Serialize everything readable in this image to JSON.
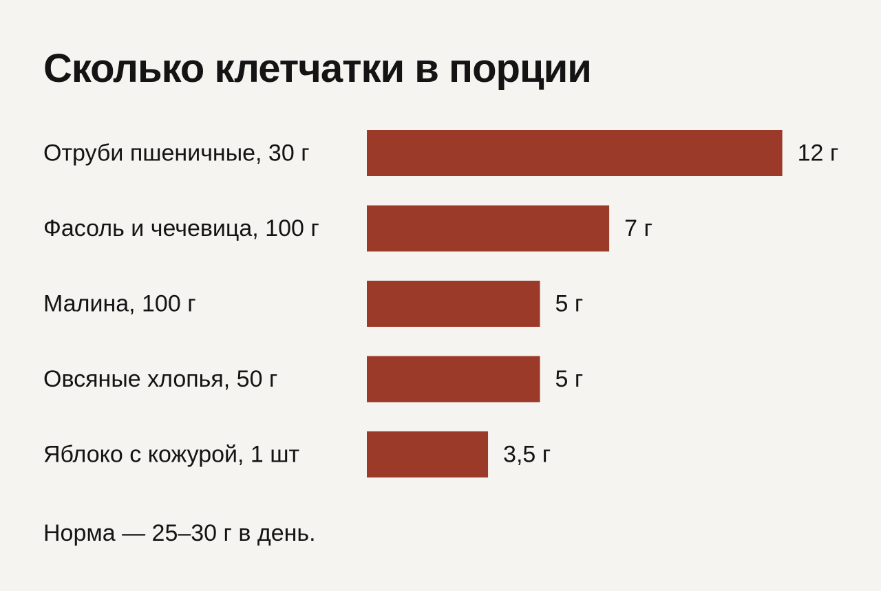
{
  "chart_data": {
    "type": "bar",
    "orientation": "horizontal",
    "title": "Сколько клетчатки в порции",
    "categories": [
      "Отруби пшеничные, 30 г",
      "Фасоль и чечевица, 100 г",
      "Малина, 100 г",
      "Овсяные хлопья, 50 г",
      "Яблоко с кожурой, 1 шт"
    ],
    "values": [
      12,
      7,
      5,
      5,
      3.5
    ],
    "value_labels": [
      "12 г",
      "7 г",
      "5 г",
      "5 г",
      "3,5 г"
    ],
    "unit": "г",
    "bar_color": "#9c3a2a",
    "grid": false,
    "legend": "none"
  },
  "note": "Норма — 25–30 г в день."
}
